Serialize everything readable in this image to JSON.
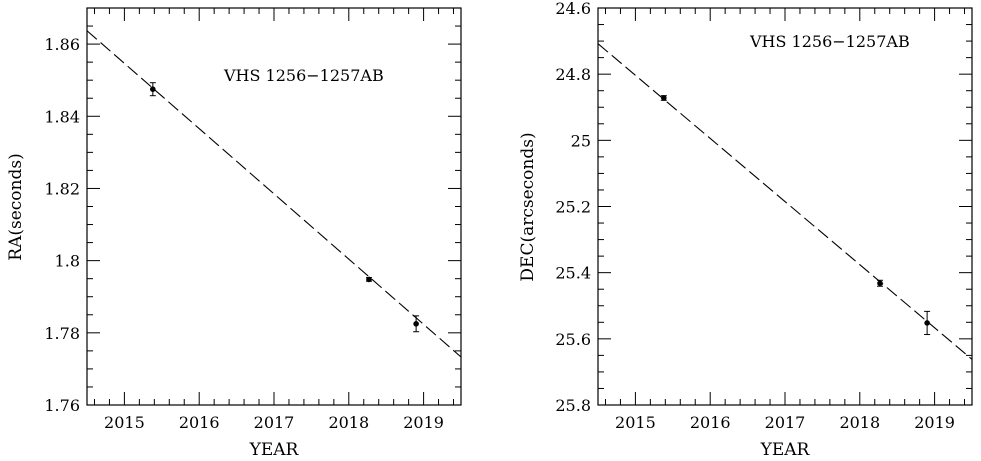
{
  "chart_data": [
    {
      "type": "scatter",
      "annotation": "VHS 1256−1257AB",
      "xlabel": "YEAR",
      "ylabel": "RA(seconds)",
      "xlim": [
        2014.5,
        2019.5
      ],
      "ylim": [
        1.76,
        1.87
      ],
      "y_inverted": false,
      "grid": false,
      "xticks": [
        2015,
        2016,
        2017,
        2018,
        2019
      ],
      "xtick_labels": [
        "2015",
        "2016",
        "2017",
        "2018",
        "2019"
      ],
      "yticks": [
        1.76,
        1.78,
        1.8,
        1.82,
        1.84,
        1.86
      ],
      "ytick_labels": [
        "1.76",
        "1.78",
        "1.8",
        "1.82",
        "1.84",
        "1.86"
      ],
      "points": [
        {
          "x": 2015.38,
          "y": 1.8475,
          "yerr": 0.0018
        },
        {
          "x": 2018.27,
          "y": 1.7948,
          "yerr": 0.0005
        },
        {
          "x": 2018.9,
          "y": 1.7825,
          "yerr": 0.0022
        }
      ],
      "fit_line": {
        "x": [
          2014.5,
          2019.5
        ],
        "y": [
          1.8637,
          1.7733
        ]
      }
    },
    {
      "type": "scatter",
      "annotation": "VHS 1256−1257AB",
      "xlabel": "YEAR",
      "ylabel": "DEC(arcseconds)",
      "xlim": [
        2014.5,
        2019.5
      ],
      "ylim": [
        24.6,
        25.8
      ],
      "y_inverted": true,
      "grid": false,
      "xticks": [
        2015,
        2016,
        2017,
        2018,
        2019
      ],
      "xtick_labels": [
        "2015",
        "2016",
        "2017",
        "2018",
        "2019"
      ],
      "yticks": [
        24.6,
        24.8,
        25.0,
        25.2,
        25.4,
        25.6,
        25.8
      ],
      "ytick_labels": [
        "24.6",
        "24.8",
        "25",
        "25.2",
        "25.4",
        "25.6",
        "25.8"
      ],
      "points": [
        {
          "x": 2015.38,
          "y": 24.872,
          "yerr": 0.007
        },
        {
          "x": 2018.27,
          "y": 25.432,
          "yerr": 0.009
        },
        {
          "x": 2018.9,
          "y": 25.552,
          "yerr": 0.035
        }
      ],
      "fit_line": {
        "x": [
          2014.5,
          2019.5
        ],
        "y": [
          24.708,
          25.662
        ]
      }
    }
  ]
}
